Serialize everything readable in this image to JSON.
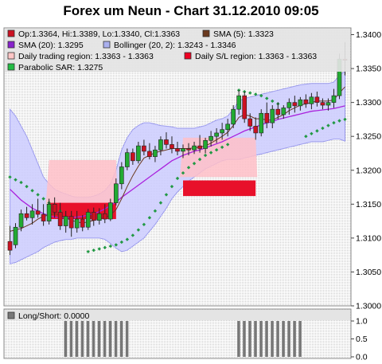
{
  "title": "Forex um Neun - Chart 31.12.2010 09:05",
  "legend": [
    {
      "text": "Op:1.3364, Hi:1.3389, Lo:1.3340, Cl:1.3363",
      "color": "#cc1122"
    },
    {
      "text": "SMA (5): 1.3323",
      "color": "#6b3a1f"
    },
    {
      "text": "SMA (20): 1.3295",
      "color": "#8822cc"
    },
    {
      "text": "Bollinger (20, 2): 1.3243 - 1.3346",
      "color": "#aab0ee"
    },
    {
      "text": "Daily trading region: 1.3363 - 1.3363",
      "color": "#ffc6c6"
    },
    {
      "text": "Daily S/L region: 1.3363 - 1.3363",
      "color": "#ee0022"
    },
    {
      "text": "Parabolic SAR: 1.3275",
      "color": "#22bb44"
    }
  ],
  "lower_legend": {
    "text": "Long/Short: 0.0000",
    "color": "#777777"
  },
  "chart_data": [
    {
      "type": "candlestick",
      "ylim": [
        1.3,
        1.341
      ],
      "yticks": [
        "1.3400",
        "1.3350",
        "1.3300",
        "1.3250",
        "1.3200",
        "1.3150",
        "1.3100",
        "1.3050",
        "1.3000"
      ],
      "candles": [
        {
          "o": 1.3095,
          "h": 1.3118,
          "l": 1.3075,
          "c": 1.3082
        },
        {
          "o": 1.309,
          "h": 1.3122,
          "l": 1.3085,
          "c": 1.3116
        },
        {
          "o": 1.3116,
          "h": 1.3142,
          "l": 1.311,
          "c": 1.3136
        },
        {
          "o": 1.3136,
          "h": 1.3146,
          "l": 1.3126,
          "c": 1.313
        },
        {
          "o": 1.313,
          "h": 1.315,
          "l": 1.312,
          "c": 1.314
        },
        {
          "o": 1.314,
          "h": 1.3158,
          "l": 1.313,
          "c": 1.3135
        },
        {
          "o": 1.3135,
          "h": 1.315,
          "l": 1.3118,
          "c": 1.3125
        },
        {
          "o": 1.3125,
          "h": 1.3158,
          "l": 1.312,
          "c": 1.315
        },
        {
          "o": 1.315,
          "h": 1.316,
          "l": 1.313,
          "c": 1.3138
        },
        {
          "o": 1.3138,
          "h": 1.3152,
          "l": 1.3112,
          "c": 1.3118
        },
        {
          "o": 1.3118,
          "h": 1.314,
          "l": 1.3108,
          "c": 1.3132
        },
        {
          "o": 1.3132,
          "h": 1.314,
          "l": 1.3102,
          "c": 1.3115
        },
        {
          "o": 1.3115,
          "h": 1.314,
          "l": 1.3108,
          "c": 1.3128
        },
        {
          "o": 1.3128,
          "h": 1.3134,
          "l": 1.311,
          "c": 1.3116
        },
        {
          "o": 1.3116,
          "h": 1.3143,
          "l": 1.3112,
          "c": 1.3138
        },
        {
          "o": 1.3138,
          "h": 1.3145,
          "l": 1.3118,
          "c": 1.3126
        },
        {
          "o": 1.3126,
          "h": 1.3144,
          "l": 1.312,
          "c": 1.3136
        },
        {
          "o": 1.3136,
          "h": 1.315,
          "l": 1.3122,
          "c": 1.3128
        },
        {
          "o": 1.3128,
          "h": 1.3158,
          "l": 1.3125,
          "c": 1.3152
        },
        {
          "o": 1.3152,
          "h": 1.3188,
          "l": 1.3148,
          "c": 1.318
        },
        {
          "o": 1.318,
          "h": 1.3212,
          "l": 1.3172,
          "c": 1.3205
        },
        {
          "o": 1.3205,
          "h": 1.3232,
          "l": 1.32,
          "c": 1.3226
        },
        {
          "o": 1.3226,
          "h": 1.3232,
          "l": 1.3208,
          "c": 1.3214
        },
        {
          "o": 1.3214,
          "h": 1.3242,
          "l": 1.321,
          "c": 1.3236
        },
        {
          "o": 1.3236,
          "h": 1.3245,
          "l": 1.3222,
          "c": 1.3228
        },
        {
          "o": 1.3228,
          "h": 1.324,
          "l": 1.3216,
          "c": 1.322
        },
        {
          "o": 1.322,
          "h": 1.3236,
          "l": 1.3212,
          "c": 1.323
        },
        {
          "o": 1.323,
          "h": 1.325,
          "l": 1.3222,
          "c": 1.3245
        },
        {
          "o": 1.3245,
          "h": 1.3256,
          "l": 1.3232,
          "c": 1.3238
        },
        {
          "o": 1.3238,
          "h": 1.325,
          "l": 1.3225,
          "c": 1.3232
        },
        {
          "o": 1.3232,
          "h": 1.3242,
          "l": 1.3222,
          "c": 1.3228
        },
        {
          "o": 1.3228,
          "h": 1.3238,
          "l": 1.3218,
          "c": 1.3232
        },
        {
          "o": 1.3232,
          "h": 1.324,
          "l": 1.3222,
          "c": 1.323
        },
        {
          "o": 1.323,
          "h": 1.3242,
          "l": 1.3224,
          "c": 1.3236
        },
        {
          "o": 1.3236,
          "h": 1.3252,
          "l": 1.3226,
          "c": 1.3232
        },
        {
          "o": 1.3232,
          "h": 1.3248,
          "l": 1.3225,
          "c": 1.3244
        },
        {
          "o": 1.3244,
          "h": 1.3258,
          "l": 1.3235,
          "c": 1.325
        },
        {
          "o": 1.325,
          "h": 1.3262,
          "l": 1.324,
          "c": 1.3255
        },
        {
          "o": 1.3255,
          "h": 1.327,
          "l": 1.3245,
          "c": 1.326
        },
        {
          "o": 1.326,
          "h": 1.3276,
          "l": 1.325,
          "c": 1.3268
        },
        {
          "o": 1.3268,
          "h": 1.3296,
          "l": 1.3262,
          "c": 1.329
        },
        {
          "o": 1.329,
          "h": 1.3318,
          "l": 1.3282,
          "c": 1.331
        },
        {
          "o": 1.331,
          "h": 1.3316,
          "l": 1.327,
          "c": 1.3276
        },
        {
          "o": 1.3276,
          "h": 1.3284,
          "l": 1.3258,
          "c": 1.3265
        },
        {
          "o": 1.3265,
          "h": 1.3278,
          "l": 1.3245,
          "c": 1.3255
        },
        {
          "o": 1.3255,
          "h": 1.329,
          "l": 1.325,
          "c": 1.3284
        },
        {
          "o": 1.3284,
          "h": 1.33,
          "l": 1.3262,
          "c": 1.327
        },
        {
          "o": 1.327,
          "h": 1.3296,
          "l": 1.3262,
          "c": 1.329
        },
        {
          "o": 1.329,
          "h": 1.33,
          "l": 1.3275,
          "c": 1.3282
        },
        {
          "o": 1.3282,
          "h": 1.3296,
          "l": 1.3276,
          "c": 1.3292
        },
        {
          "o": 1.3292,
          "h": 1.3306,
          "l": 1.3282,
          "c": 1.33
        },
        {
          "o": 1.33,
          "h": 1.331,
          "l": 1.3285,
          "c": 1.3295
        },
        {
          "o": 1.3295,
          "h": 1.3308,
          "l": 1.3288,
          "c": 1.3304
        },
        {
          "o": 1.3304,
          "h": 1.3312,
          "l": 1.3292,
          "c": 1.3298
        },
        {
          "o": 1.3298,
          "h": 1.3314,
          "l": 1.329,
          "c": 1.3308
        },
        {
          "o": 1.3308,
          "h": 1.3316,
          "l": 1.3294,
          "c": 1.33
        },
        {
          "o": 1.33,
          "h": 1.3306,
          "l": 1.329,
          "c": 1.3296
        },
        {
          "o": 1.3296,
          "h": 1.3306,
          "l": 1.3288,
          "c": 1.33
        },
        {
          "o": 1.33,
          "h": 1.332,
          "l": 1.3292,
          "c": 1.331
        },
        {
          "o": 1.331,
          "h": 1.3372,
          "l": 1.3305,
          "c": 1.3364
        },
        {
          "o": 1.3364,
          "h": 1.3389,
          "l": 1.334,
          "c": 1.3363
        }
      ],
      "sma5": [
        1.311,
        1.3112,
        1.3114,
        1.3118,
        1.3122,
        1.3128,
        1.3132,
        1.3134,
        1.3136,
        1.3134,
        1.313,
        1.3126,
        1.3124,
        1.3122,
        1.3124,
        1.3126,
        1.3128,
        1.313,
        1.3134,
        1.3142,
        1.3158,
        1.3176,
        1.3192,
        1.3206,
        1.3218,
        1.3222,
        1.3226,
        1.3228,
        1.323,
        1.3232,
        1.3232,
        1.3232,
        1.3232,
        1.3233,
        1.3234,
        1.3236,
        1.324,
        1.3245,
        1.325,
        1.3256,
        1.3266,
        1.3278,
        1.3282,
        1.328,
        1.3276,
        1.3276,
        1.3274,
        1.3274,
        1.3278,
        1.3282,
        1.3288,
        1.3292,
        1.3296,
        1.3298,
        1.33,
        1.3302,
        1.3302,
        1.3302,
        1.3304,
        1.3314,
        1.3323
      ],
      "sma20": [
        1.3172,
        1.3164,
        1.3156,
        1.315,
        1.3144,
        1.314,
        1.3136,
        1.3133,
        1.3131,
        1.313,
        1.313,
        1.313,
        1.3131,
        1.3132,
        1.3134,
        1.3136,
        1.3139,
        1.3143,
        1.3148,
        1.3153,
        1.316,
        1.3166,
        1.3172,
        1.3178,
        1.3184,
        1.319,
        1.3196,
        1.3202,
        1.3208,
        1.3214,
        1.3218,
        1.3222,
        1.3225,
        1.3228,
        1.323,
        1.3233,
        1.3236,
        1.3239,
        1.3242,
        1.3246,
        1.325,
        1.3254,
        1.3258,
        1.3261,
        1.3264,
        1.3267,
        1.327,
        1.3272,
        1.3275,
        1.3277,
        1.3279,
        1.3281,
        1.3283,
        1.3285,
        1.3287,
        1.3288,
        1.3289,
        1.329,
        1.3291,
        1.3293,
        1.3295
      ],
      "boll_upper": [
        1.329,
        1.328,
        1.3265,
        1.325,
        1.323,
        1.321,
        1.319,
        1.318,
        1.3172,
        1.3168,
        1.3165,
        1.3162,
        1.316,
        1.316,
        1.316,
        1.3162,
        1.3165,
        1.317,
        1.318,
        1.32,
        1.323,
        1.3248,
        1.326,
        1.3266,
        1.327,
        1.327,
        1.3268,
        1.3266,
        1.3265,
        1.3264,
        1.3262,
        1.3262,
        1.3262,
        1.3262,
        1.3264,
        1.3266,
        1.327,
        1.3274,
        1.3276,
        1.328,
        1.329,
        1.3302,
        1.3306,
        1.3308,
        1.331,
        1.3312,
        1.3314,
        1.3316,
        1.3318,
        1.332,
        1.3322,
        1.3324,
        1.3326,
        1.3327,
        1.3328,
        1.3328,
        1.3328,
        1.3328,
        1.333,
        1.334,
        1.3346
      ],
      "boll_lower": [
        1.3062,
        1.3064,
        1.3068,
        1.3072,
        1.3076,
        1.308,
        1.3086,
        1.309,
        1.3094,
        1.3096,
        1.3098,
        1.3098,
        1.31,
        1.31,
        1.31,
        1.31,
        1.31,
        1.3098,
        1.3092,
        1.3085,
        1.308,
        1.3082,
        1.3088,
        1.3094,
        1.31,
        1.311,
        1.312,
        1.3132,
        1.3144,
        1.3158,
        1.3168,
        1.3176,
        1.3184,
        1.319,
        1.3196,
        1.3202,
        1.3206,
        1.321,
        1.3214,
        1.3216,
        1.3216,
        1.3216,
        1.3218,
        1.322,
        1.3222,
        1.3224,
        1.3226,
        1.3228,
        1.323,
        1.3232,
        1.3234,
        1.3236,
        1.3238,
        1.324,
        1.3242,
        1.3242,
        1.3242,
        1.3244,
        1.3246,
        1.3246,
        1.3243
      ],
      "sar": [
        1.319,
        1.3186,
        1.3182,
        1.3176,
        1.317,
        1.3164,
        1.3158,
        1.3152,
        1.3146,
        1.314,
        null,
        null,
        null,
        null,
        1.308,
        1.3082,
        1.3084,
        1.3086,
        1.3088,
        1.309,
        1.3094,
        1.3098,
        1.3104,
        1.3112,
        1.312,
        1.313,
        1.314,
        1.3152,
        1.3164,
        1.3176,
        1.3188,
        1.3196,
        1.3204,
        1.321,
        1.3216,
        1.3222,
        1.3226,
        1.323,
        1.3234,
        1.3238,
        null,
        1.3318,
        1.3316,
        1.3314,
        1.3312,
        1.331,
        1.3306,
        1.3302,
        1.3298,
        null,
        null,
        null,
        null,
        1.325,
        1.3254,
        1.3258,
        1.3262,
        1.3266,
        1.327,
        1.3273,
        1.3275
      ],
      "trading_regions": [
        {
          "from": 7,
          "to": 19,
          "low": 1.315,
          "high": 1.3215
        },
        {
          "from": 31,
          "to": 44,
          "low": 1.319,
          "high": 1.3248
        }
      ],
      "sl_regions": [
        {
          "from": 7,
          "to": 19,
          "low": 1.3128,
          "high": 1.3152
        },
        {
          "from": 31,
          "to": 44,
          "low": 1.3162,
          "high": 1.3185
        }
      ],
      "lower_ylim": [
        0,
        1.0
      ],
      "lower_yticks": [
        "1.0",
        "0.5",
        "0.0"
      ],
      "long_short": [
        0,
        0,
        0,
        0,
        0,
        0,
        0,
        0,
        0,
        0,
        1,
        1,
        1,
        1,
        1,
        1,
        1,
        1,
        1,
        1,
        1,
        1,
        0,
        0,
        0,
        0,
        0,
        0,
        0,
        0,
        0,
        0,
        0,
        0,
        0,
        0,
        0,
        0,
        0,
        0,
        0,
        1,
        1,
        1,
        1,
        1,
        1,
        1,
        1,
        1,
        1,
        1,
        1,
        0,
        0,
        0,
        0,
        0,
        0,
        0,
        0
      ]
    }
  ]
}
